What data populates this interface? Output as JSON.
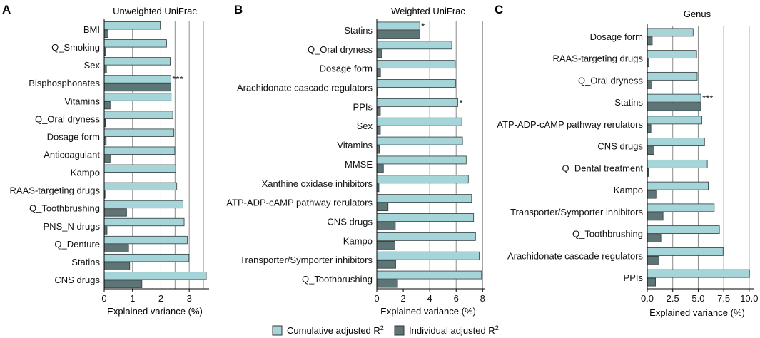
{
  "colors": {
    "cumulative": "#a6d5d9",
    "individual": "#5e7577",
    "grid": "#8c8c8c",
    "axis": "#000000",
    "text": "#111111"
  },
  "legend": {
    "cumulative_label": "Cumulative adjusted R",
    "individual_label": "Individual adjusted R",
    "superscript": "2"
  },
  "chart_data": [
    {
      "panel": "A",
      "type": "bar",
      "orientation": "horizontal",
      "title": "Unweighted UniFrac",
      "xlabel": "Explained variance (%)",
      "ylabel": "",
      "xlim": [
        0,
        3.7
      ],
      "xticks": [
        0,
        1,
        2,
        3
      ],
      "xtick_labels": [
        "0",
        "1",
        "2",
        "3"
      ],
      "grid_x": [
        1,
        2,
        2.5,
        3,
        3.5
      ],
      "categories": [
        "BMI",
        "Q_Smoking",
        "Sex",
        "Bisphosphonates",
        "Vitamins",
        "Q_Oral dryness",
        "Dosage form",
        "Anticoagulant",
        "Kampo",
        "RAAS-targeting drugs",
        "Q_Toothbrushing",
        "PNS_N drugs",
        "Q_Denture",
        "Statins",
        "CNS drugs"
      ],
      "series": [
        {
          "name": "Cumulative adjusted R2",
          "values": [
            1.98,
            2.2,
            2.33,
            2.35,
            2.36,
            2.42,
            2.46,
            2.49,
            2.52,
            2.56,
            2.78,
            2.82,
            2.93,
            2.99,
            3.6
          ]
        },
        {
          "name": "Individual adjusted R2",
          "values": [
            0.14,
            0.05,
            0.08,
            2.35,
            0.21,
            0.04,
            0.07,
            0.21,
            0.0,
            0.03,
            0.79,
            0.1,
            0.86,
            0.9,
            1.33
          ]
        }
      ],
      "annotations": [
        {
          "category": "Bisphosphonates",
          "text": "***"
        }
      ]
    },
    {
      "panel": "B",
      "type": "bar",
      "orientation": "horizontal",
      "title": "Weighted UniFrac",
      "xlabel": "Explained variance (%)",
      "ylabel": "",
      "xlim": [
        0,
        8.2
      ],
      "xticks": [
        0,
        2,
        4,
        6,
        8
      ],
      "xtick_labels": [
        "0",
        "2",
        "4",
        "6",
        "8"
      ],
      "grid_x": [
        4,
        6,
        8
      ],
      "categories": [
        "Statins",
        "Q_Oral dryness",
        "Dosage form",
        "Arachidonate cascade regulators",
        "PPIs",
        "Sex",
        "Vitamins",
        "MMSE",
        "Xanthine oxidase inhibitors",
        "ATP-ADP-cAMP pathway rerulators",
        "CNS drugs",
        "Kampo",
        "Transporter/Symporter inhibitors",
        "Q_Toothbrushing"
      ],
      "series": [
        {
          "name": "Cumulative adjusted R2",
          "values": [
            3.25,
            5.67,
            5.93,
            5.95,
            6.12,
            6.43,
            6.48,
            6.76,
            6.92,
            7.17,
            7.32,
            7.46,
            7.74,
            7.92
          ]
        },
        {
          "name": "Individual adjusted R2",
          "values": [
            3.25,
            0.38,
            0.28,
            0.08,
            0.27,
            0.27,
            0.19,
            0.5,
            0.16,
            0.85,
            1.4,
            1.38,
            1.43,
            1.57
          ]
        }
      ],
      "annotations": [
        {
          "category": "Statins",
          "text": "*"
        },
        {
          "category": "PPIs",
          "text": "*"
        }
      ]
    },
    {
      "panel": "C",
      "type": "bar",
      "orientation": "horizontal",
      "title": "Genus",
      "xlabel": "Explained variance (%)",
      "ylabel": "",
      "xlim": [
        0,
        10.5
      ],
      "xticks": [
        0,
        2.5,
        5,
        7.5,
        10
      ],
      "xtick_labels": [
        "0.0",
        "2.5",
        "5.0",
        "7.5",
        "10.0"
      ],
      "grid_x": [
        2.5,
        5,
        7.5,
        10
      ],
      "categories": [
        "Dosage form",
        "RAAS-targeting drugs",
        "Q_Oral dryness",
        "Statins",
        "ATP-ADP-cAMP pathway rerulators",
        "CNS drugs",
        "Q_Dental treatment",
        "Kampo",
        "Transporter/Symporter inhibitors",
        "Q_Toothbrushing",
        "Arachidonate cascade regulators",
        "PPIs"
      ],
      "series": [
        {
          "name": "Cumulative adjusted R2",
          "values": [
            4.5,
            4.84,
            4.9,
            5.26,
            5.35,
            5.62,
            5.89,
            5.99,
            6.57,
            7.08,
            7.44,
            10.03
          ]
        },
        {
          "name": "Individual adjusted R2",
          "values": [
            0.49,
            0.15,
            0.45,
            5.26,
            0.36,
            0.66,
            0.12,
            0.86,
            1.55,
            1.34,
            1.14,
            0.81
          ]
        }
      ],
      "annotations": [
        {
          "category": "Statins",
          "text": "***"
        }
      ]
    }
  ]
}
